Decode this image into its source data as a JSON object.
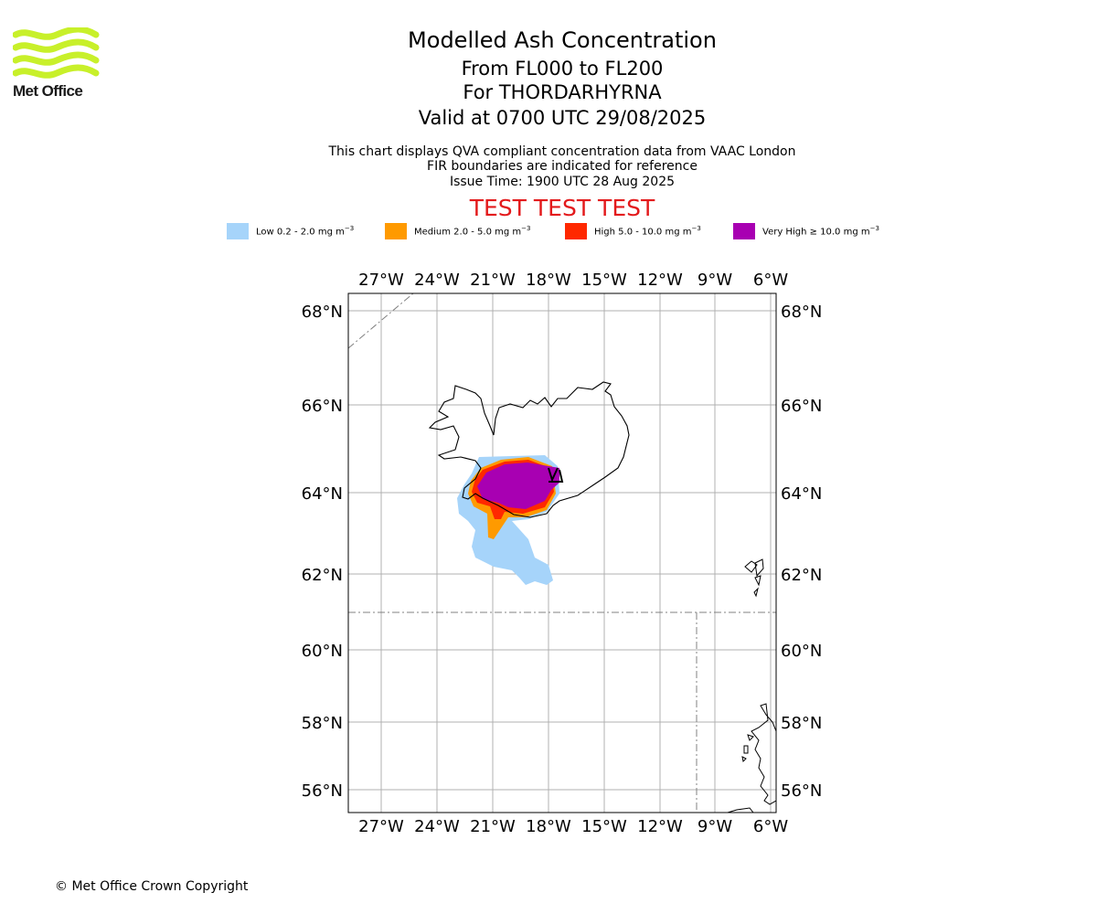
{
  "logo": {
    "text": "Met Office",
    "colors": {
      "waves": "#c8f02a"
    }
  },
  "header": {
    "title": "Modelled Ash Concentration",
    "levels": "From FL000 to FL200",
    "volcano": "For THORDARHYRNA",
    "valid": "Valid at 0700 UTC 29/08/2025"
  },
  "subheader": {
    "line1": "This chart displays QVA compliant concentration data from VAAC London",
    "line2": "FIR boundaries are indicated for reference",
    "line3": "Issue Time: 1900 UTC 28 Aug 2025"
  },
  "warning": {
    "text": "TEST TEST TEST",
    "color": "#e31a1c"
  },
  "legend": [
    {
      "label": "Low 0.2 - 2.0 mg m",
      "sup": "−3",
      "color": "#a6d4fa",
      "icon": "low-swatch"
    },
    {
      "label": "Medium 2.0 - 5.0 mg m",
      "sup": "−3",
      "color": "#ff9a00",
      "icon": "medium-swatch"
    },
    {
      "label": "High 5.0 - 10.0 mg m",
      "sup": "−3",
      "color": "#ff2800",
      "icon": "high-swatch"
    },
    {
      "label": "Very High  ≥  10.0 mg m",
      "sup": "−3",
      "color": "#a800b2",
      "icon": "very-high-swatch"
    }
  ],
  "map": {
    "lon_ticks": [
      "27°W",
      "24°W",
      "21°W",
      "18°W",
      "15°W",
      "12°W",
      "9°W",
      "6°W"
    ],
    "lat_ticks": [
      "68°N",
      "66°N",
      "64°N",
      "62°N",
      "60°N",
      "58°N",
      "56°N"
    ],
    "colors": {
      "grid": "#b0b0b0",
      "coast": "#000000",
      "fir": "#808080"
    }
  },
  "footer": {
    "copyright": "© Met Office Crown Copyright"
  }
}
